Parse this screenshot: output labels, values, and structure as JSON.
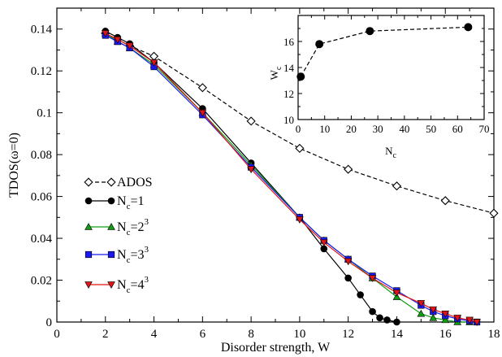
{
  "chart_data": [
    {
      "type": "line",
      "ylabel": "TDOS(ω=0)",
      "xlabel": "Disorder strength, W",
      "xlim": [
        0,
        18
      ],
      "ylim": [
        0,
        0.15
      ],
      "xticks": [
        "0",
        "2",
        "4",
        "6",
        "8",
        "10",
        "12",
        "14",
        "16",
        "18"
      ],
      "yticks": [
        "0",
        "0.02",
        "0.04",
        "0.06",
        "0.08",
        "0.1",
        "0.12",
        "0.14"
      ],
      "legend_position": "left",
      "series": [
        {
          "name": "ADOS",
          "color": "#000000",
          "marker": "diamond-open",
          "dashed": true,
          "x": [
            2,
            2.5,
            3,
            4,
            6,
            8,
            10,
            12,
            14,
            16,
            18
          ],
          "y": [
            0.138,
            0.135,
            0.132,
            0.127,
            0.112,
            0.096,
            0.083,
            0.073,
            0.065,
            0.058,
            0.052
          ]
        },
        {
          "name": "Nc=1",
          "name_parts": [
            "N",
            "c",
            "=1"
          ],
          "color": "#000000",
          "marker": "circle",
          "x": [
            2,
            2.5,
            3,
            4,
            6,
            8,
            10,
            11,
            12,
            12.5,
            13,
            13.3,
            13.6,
            14
          ],
          "y": [
            0.139,
            0.136,
            0.133,
            0.124,
            0.102,
            0.076,
            0.05,
            0.035,
            0.021,
            0.013,
            0.005,
            0.002,
            0.001,
            0.0
          ]
        },
        {
          "name": "Nc=2³",
          "name_parts": [
            "N",
            "c",
            "=2",
            "3"
          ],
          "color": "#119d11",
          "marker": "triangle-up",
          "x": [
            2,
            2.5,
            3,
            4,
            6,
            8,
            10,
            11,
            12,
            13,
            14,
            15,
            15.5,
            16,
            16.5,
            17
          ],
          "y": [
            0.138,
            0.134,
            0.131,
            0.123,
            0.1,
            0.075,
            0.05,
            0.039,
            0.03,
            0.021,
            0.012,
            0.004,
            0.002,
            0.001,
            0.0,
            0.0
          ]
        },
        {
          "name": "Nc=3³",
          "name_parts": [
            "N",
            "c",
            "=3",
            "3"
          ],
          "color": "#1a1af0",
          "marker": "square",
          "x": [
            2,
            2.5,
            3,
            4,
            6,
            8,
            10,
            11,
            12,
            13,
            14,
            15,
            15.5,
            16,
            16.5,
            17,
            17.3
          ],
          "y": [
            0.137,
            0.134,
            0.131,
            0.122,
            0.099,
            0.074,
            0.05,
            0.039,
            0.03,
            0.022,
            0.015,
            0.008,
            0.005,
            0.003,
            0.0015,
            0.0005,
            0.0
          ]
        },
        {
          "name": "Nc=4³",
          "name_parts": [
            "N",
            "c",
            "=4",
            "3"
          ],
          "color": "#e01515",
          "marker": "triangle-down",
          "x": [
            2,
            2.5,
            3,
            4,
            6,
            8,
            10,
            11,
            12,
            13,
            14,
            15,
            15.5,
            16,
            16.5,
            17,
            17.3
          ],
          "y": [
            0.138,
            0.135,
            0.132,
            0.124,
            0.1,
            0.073,
            0.049,
            0.038,
            0.029,
            0.021,
            0.014,
            0.009,
            0.006,
            0.004,
            0.002,
            0.001,
            0.0
          ]
        }
      ]
    },
    {
      "type": "line",
      "ylabel_parts": [
        "W",
        "c"
      ],
      "xlabel_parts": [
        "N",
        "c"
      ],
      "xlim": [
        0,
        70
      ],
      "ylim": [
        10,
        18
      ],
      "xticks": [
        "0",
        "10",
        "20",
        "30",
        "40",
        "50",
        "60",
        "70"
      ],
      "yticks": [
        "10",
        "12",
        "14",
        "16"
      ],
      "series": [
        {
          "color": "#000000",
          "marker": "circle",
          "dashed": true,
          "x": [
            1,
            8,
            27,
            64
          ],
          "y": [
            13.3,
            15.8,
            16.8,
            17.1
          ]
        }
      ]
    }
  ]
}
